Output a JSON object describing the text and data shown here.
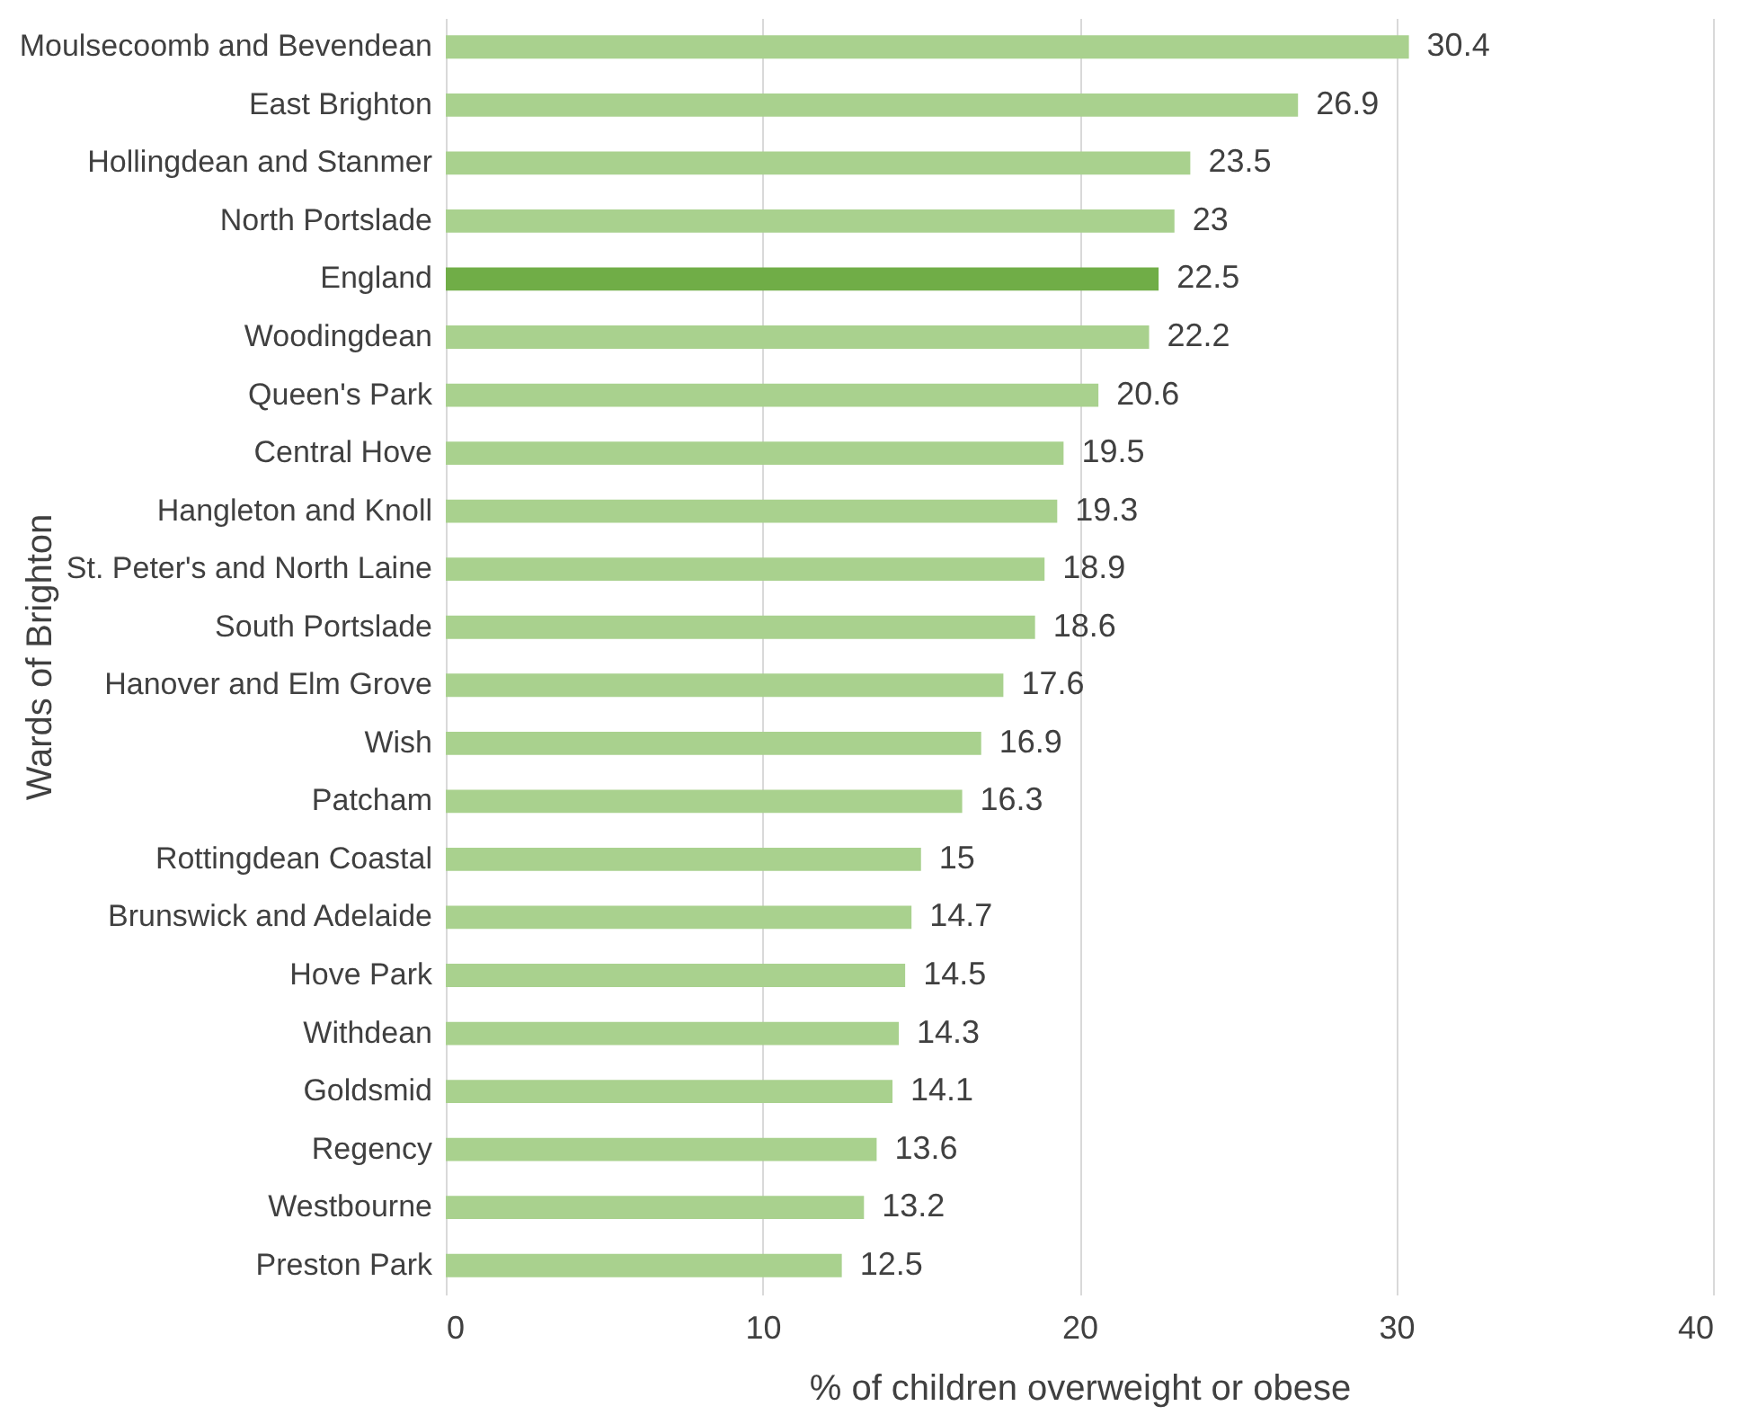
{
  "chart_data": {
    "type": "bar",
    "orientation": "horizontal",
    "xlabel": "% of children overweight or obese",
    "ylabel": "Wards of Brighton",
    "categories": [
      "Moulsecoomb and Bevendean",
      "East Brighton",
      "Hollingdean and Stanmer",
      "North Portslade",
      "England",
      "Woodingdean",
      "Queen's Park",
      "Central Hove",
      "Hangleton and Knoll",
      "St. Peter's and North Laine",
      "South Portslade",
      "Hanover and Elm Grove",
      "Wish",
      "Patcham",
      "Rottingdean Coastal",
      "Brunswick and Adelaide",
      "Hove Park",
      "Withdean",
      "Goldsmid",
      "Regency",
      "Westbourne",
      "Preston Park"
    ],
    "values": [
      30.4,
      26.9,
      23.5,
      23,
      22.5,
      22.2,
      20.6,
      19.5,
      19.3,
      18.9,
      18.6,
      17.6,
      16.9,
      16.3,
      15,
      14.7,
      14.5,
      14.3,
      14.1,
      13.6,
      13.2,
      12.5
    ],
    "colors": [
      "#a9d18e",
      "#a9d18e",
      "#a9d18e",
      "#a9d18e",
      "#70ad47",
      "#a9d18e",
      "#a9d18e",
      "#a9d18e",
      "#a9d18e",
      "#a9d18e",
      "#a9d18e",
      "#a9d18e",
      "#a9d18e",
      "#a9d18e",
      "#a9d18e",
      "#a9d18e",
      "#a9d18e",
      "#a9d18e",
      "#a9d18e",
      "#a9d18e",
      "#a9d18e",
      "#a9d18e"
    ],
    "xlim": [
      0,
      40
    ],
    "xticks": [
      0,
      10,
      20,
      30,
      40
    ],
    "grid": "x",
    "data_labels": true
  }
}
